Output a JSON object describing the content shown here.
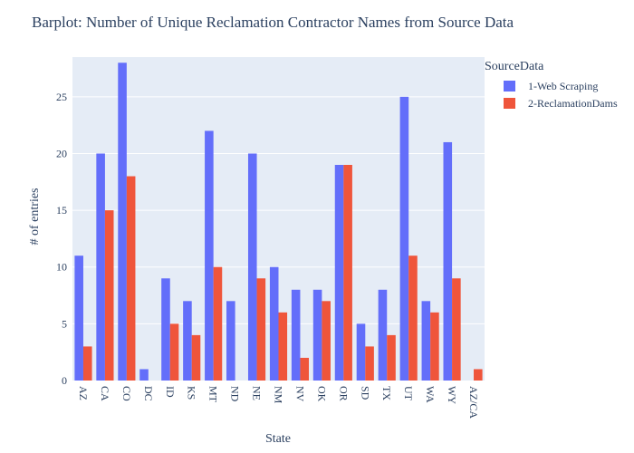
{
  "colors": {
    "plot_bg": "#e5ecf6",
    "grid": "#ffffff",
    "text": "#2a3f5f",
    "series1": "#636efa",
    "series2": "#ef553b"
  },
  "chart_data": {
    "type": "bar",
    "title": "Barplot: Number of Unique Reclamation Contractor Names from Source Data",
    "xlabel": "State",
    "ylabel": "# of entries",
    "ylim": [
      0,
      28.5
    ],
    "yticks": [
      0,
      5,
      10,
      15,
      20,
      25
    ],
    "grid": true,
    "legend_title": "SourceData",
    "legend_position": "top-right",
    "categories": [
      "AZ",
      "CA",
      "CO",
      "DC",
      "ID",
      "KS",
      "MT",
      "ND",
      "NE",
      "NM",
      "NV",
      "OK",
      "OR",
      "SD",
      "TX",
      "UT",
      "WA",
      "WY",
      "AZ/CA"
    ],
    "series": [
      {
        "name": "1-Web Scraping",
        "color": "#636efa",
        "values": [
          11,
          20,
          28,
          1,
          9,
          7,
          22,
          7,
          20,
          10,
          8,
          8,
          19,
          5,
          8,
          25,
          7,
          21,
          null
        ]
      },
      {
        "name": "2-ReclamationDams",
        "color": "#ef553b",
        "values": [
          3,
          15,
          18,
          null,
          5,
          4,
          10,
          null,
          9,
          6,
          2,
          7,
          19,
          3,
          4,
          11,
          6,
          9,
          1
        ]
      }
    ]
  }
}
